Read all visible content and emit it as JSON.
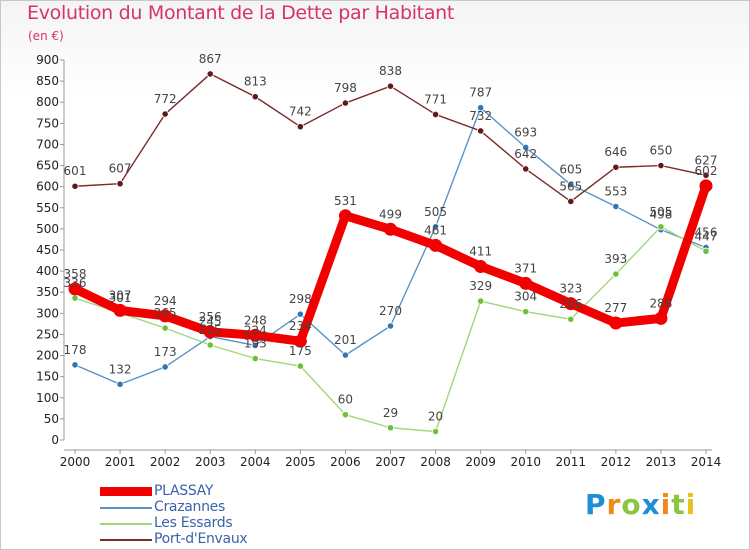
{
  "chart_data": {
    "type": "line",
    "title": "Evolution du Montant de la Dette par Habitant",
    "subtitle": "(en €)",
    "x": [
      "2000",
      "2001",
      "2002",
      "2003",
      "2004",
      "2005",
      "2006",
      "2007",
      "2008",
      "2009",
      "2010",
      "2011",
      "2012",
      "2013",
      "2014"
    ],
    "ylim": [
      0,
      900
    ],
    "yticks": [
      0,
      50,
      100,
      150,
      200,
      250,
      300,
      350,
      400,
      450,
      500,
      550,
      600,
      650,
      700,
      750,
      800,
      850,
      900
    ],
    "grid": false,
    "legend_position": "bottom-left",
    "series": [
      {
        "name": "Crazannes",
        "color": "#5b93c7",
        "marker": "#2f78b8",
        "values": [
          178,
          132,
          173,
          245,
          224,
          298,
          201,
          270,
          505,
          787,
          693,
          605,
          553,
          498,
          456
        ]
      },
      {
        "name": "Les Essards",
        "color": "#9fd77a",
        "marker": "#6fbf3a",
        "values": [
          336,
          301,
          265,
          225,
          193,
          175,
          60,
          29,
          20,
          329,
          304,
          286,
          393,
          505,
          447
        ]
      },
      {
        "name": "Port-d'Envaux",
        "color": "#7a2a2a",
        "marker": "#5e1a1a",
        "values": [
          601,
          607,
          772,
          867,
          813,
          742,
          798,
          838,
          771,
          732,
          642,
          565,
          646,
          650,
          627
        ]
      },
      {
        "name": "PLASSAY",
        "color": "#f20000",
        "marker": "#f20000",
        "thick": true,
        "values": [
          358,
          307,
          294,
          256,
          248,
          234,
          531,
          499,
          461,
          411,
          371,
          323,
          277,
          288,
          602
        ]
      }
    ],
    "data_labels": [
      {
        "text": "178",
        "series": 0,
        "i": 0
      },
      {
        "text": "132",
        "series": 0,
        "i": 1
      },
      {
        "text": "173",
        "series": 0,
        "i": 2
      },
      {
        "text": "245",
        "series": 0,
        "i": 3
      },
      {
        "text": "224",
        "series": 0,
        "i": 4
      },
      {
        "text": "298",
        "series": 0,
        "i": 5
      },
      {
        "text": "201",
        "series": 0,
        "i": 6
      },
      {
        "text": "270",
        "series": 0,
        "i": 7
      },
      {
        "text": "505",
        "series": 0,
        "i": 8
      },
      {
        "text": "787",
        "series": 0,
        "i": 9
      },
      {
        "text": "693",
        "series": 0,
        "i": 10
      },
      {
        "text": "605",
        "series": 0,
        "i": 11
      },
      {
        "text": "553",
        "series": 0,
        "i": 12
      },
      {
        "text": "498",
        "series": 0,
        "i": 13
      },
      {
        "text": "456",
        "series": 0,
        "i": 14
      },
      {
        "text": "336",
        "series": 1,
        "i": 0
      },
      {
        "text": "301",
        "series": 1,
        "i": 1
      },
      {
        "text": "265",
        "series": 1,
        "i": 2
      },
      {
        "text": "225",
        "series": 1,
        "i": 3
      },
      {
        "text": "193",
        "series": 1,
        "i": 4
      },
      {
        "text": "175",
        "series": 1,
        "i": 5
      },
      {
        "text": "60",
        "series": 1,
        "i": 6
      },
      {
        "text": "29",
        "series": 1,
        "i": 7
      },
      {
        "text": "20",
        "series": 1,
        "i": 8
      },
      {
        "text": "329",
        "series": 1,
        "i": 9
      },
      {
        "text": "304",
        "series": 1,
        "i": 10
      },
      {
        "text": "286",
        "series": 1,
        "i": 11
      },
      {
        "text": "393",
        "series": 1,
        "i": 12
      },
      {
        "text": "505",
        "series": 1,
        "i": 13
      },
      {
        "text": "447",
        "series": 1,
        "i": 14
      },
      {
        "text": "601",
        "series": 2,
        "i": 0
      },
      {
        "text": "607",
        "series": 2,
        "i": 1
      },
      {
        "text": "772",
        "series": 2,
        "i": 2
      },
      {
        "text": "867",
        "series": 2,
        "i": 3
      },
      {
        "text": "813",
        "series": 2,
        "i": 4
      },
      {
        "text": "742",
        "series": 2,
        "i": 5
      },
      {
        "text": "798",
        "series": 2,
        "i": 6
      },
      {
        "text": "838",
        "series": 2,
        "i": 7
      },
      {
        "text": "771",
        "series": 2,
        "i": 8
      },
      {
        "text": "732",
        "series": 2,
        "i": 9
      },
      {
        "text": "642",
        "series": 2,
        "i": 10
      },
      {
        "text": "565",
        "series": 2,
        "i": 11
      },
      {
        "text": "646",
        "series": 2,
        "i": 12
      },
      {
        "text": "650",
        "series": 2,
        "i": 13
      },
      {
        "text": "627",
        "series": 2,
        "i": 14
      },
      {
        "text": "358",
        "series": 3,
        "i": 0
      },
      {
        "text": "307",
        "series": 3,
        "i": 1
      },
      {
        "text": "294",
        "series": 3,
        "i": 2
      },
      {
        "text": "256",
        "series": 3,
        "i": 3
      },
      {
        "text": "248",
        "series": 3,
        "i": 4
      },
      {
        "text": "234",
        "series": 3,
        "i": 5
      },
      {
        "text": "531",
        "series": 3,
        "i": 6
      },
      {
        "text": "499",
        "series": 3,
        "i": 7
      },
      {
        "text": "461",
        "series": 3,
        "i": 8
      },
      {
        "text": "411",
        "series": 3,
        "i": 9
      },
      {
        "text": "371",
        "series": 3,
        "i": 10
      },
      {
        "text": "323",
        "series": 3,
        "i": 11
      },
      {
        "text": "277",
        "series": 3,
        "i": 12
      },
      {
        "text": "288",
        "series": 3,
        "i": 13
      },
      {
        "text": "602",
        "series": 3,
        "i": 14
      }
    ]
  },
  "legend": [
    {
      "label": "PLASSAY",
      "color": "#f20000",
      "thick": true
    },
    {
      "label": "Crazannes",
      "color": "#5b93c7"
    },
    {
      "label": "Les Essards",
      "color": "#9fd77a"
    },
    {
      "label": "Port-d'Envaux",
      "color": "#7a2a2a"
    }
  ],
  "logo": {
    "text": "Proxiti"
  }
}
